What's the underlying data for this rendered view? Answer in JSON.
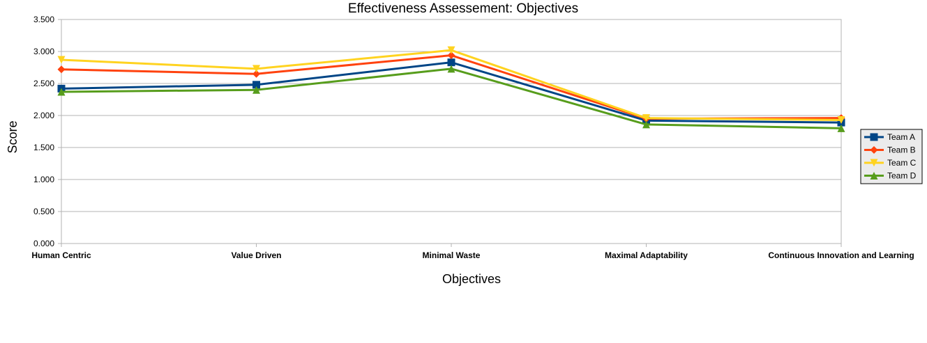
{
  "chart_data": {
    "type": "line",
    "title": "Effectiveness Assessement: Objectives",
    "xlabel": "Objectives",
    "ylabel": "Score",
    "categories": [
      "Human Centric",
      "Value Driven",
      "Minimal Waste",
      "Maximal Adaptability",
      "Continuous Innovation and Learning"
    ],
    "ylim": [
      0,
      3.5
    ],
    "yticks": [
      "0.000",
      "0.500",
      "1.000",
      "1.500",
      "2.000",
      "2.500",
      "3.000",
      "3.500"
    ],
    "grid": true,
    "legend": "right",
    "series": [
      {
        "name": "Team A",
        "color": "#004586",
        "marker": "square",
        "values": [
          2.42,
          2.48,
          2.83,
          1.92,
          1.89
        ]
      },
      {
        "name": "Team B",
        "color": "#ff420e",
        "marker": "diamond",
        "values": [
          2.72,
          2.65,
          2.94,
          1.95,
          1.96
        ]
      },
      {
        "name": "Team C",
        "color": "#ffd320",
        "marker": "triangle-down",
        "values": [
          2.87,
          2.73,
          3.02,
          1.96,
          1.93
        ]
      },
      {
        "name": "Team D",
        "color": "#579d1c",
        "marker": "triangle-up",
        "values": [
          2.37,
          2.4,
          2.73,
          1.86,
          1.8
        ]
      }
    ]
  }
}
